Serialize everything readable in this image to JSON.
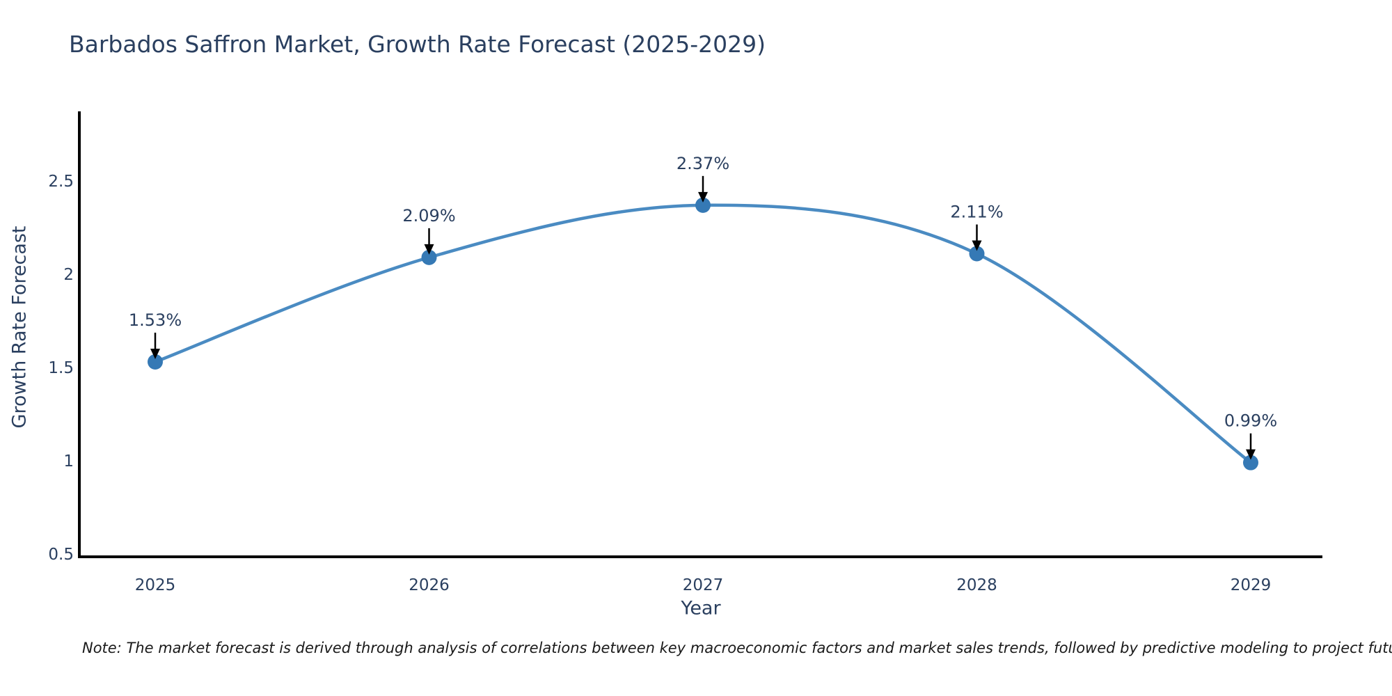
{
  "page": {
    "background": "#ffffff"
  },
  "chart_data": {
    "type": "line",
    "title": "Barbados Saffron Market, Growth Rate Forecast (2025-2029)",
    "xlabel": "Year",
    "ylabel": "Growth Rate Forecast",
    "categories": [
      "2025",
      "2026",
      "2027",
      "2028",
      "2029"
    ],
    "series": [
      {
        "name": "Growth Rate Forecast",
        "values": [
          1.53,
          2.09,
          2.37,
          2.11,
          0.99
        ]
      }
    ],
    "point_labels": [
      "1.53%",
      "2.09%",
      "2.37%",
      "2.11%",
      "0.99%"
    ],
    "yticks": [
      {
        "v": 0.5,
        "label": "0.5"
      },
      {
        "v": 1.0,
        "label": "1"
      },
      {
        "v": 1.5,
        "label": "1.5"
      },
      {
        "v": 2.0,
        "label": "2"
      },
      {
        "v": 2.5,
        "label": "2.5"
      }
    ],
    "ylim": [
      0.5,
      2.89
    ],
    "grid": false,
    "legend_visible": false,
    "line_shape": "spline",
    "colors": {
      "line": "#4a8bc2",
      "marker": "#3579b5",
      "annotation_text": "#2a3f5f",
      "annotation_arrow": "#000000",
      "axis": "#000000",
      "tick_text": "#2a3f5f",
      "note_text": "#1a1a1a"
    },
    "note": "Note: The market forecast is derived through analysis of correlations between key macroeconomic factors and market sales trends, followed by predictive modeling to project future sales"
  }
}
